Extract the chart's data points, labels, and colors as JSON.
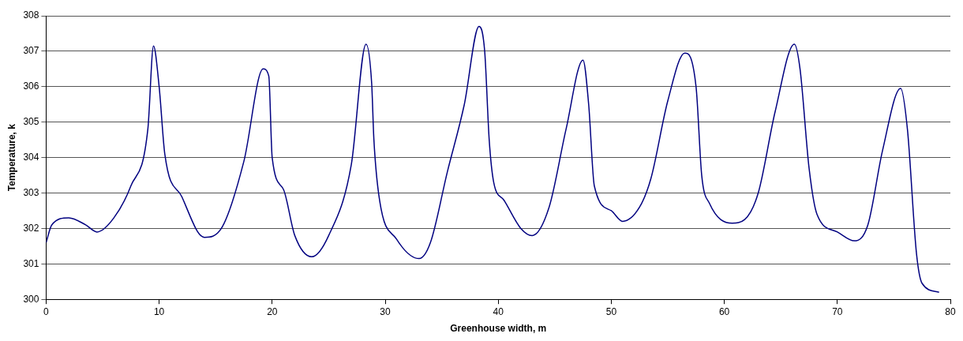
{
  "chart_data": {
    "type": "line",
    "xlabel": "Greenhouse width, m",
    "ylabel": "Temperature, k",
    "x": [
      0,
      0.5,
      2,
      3.5,
      4.5,
      6,
      7.5,
      9,
      9.5,
      10,
      10.5,
      12,
      14,
      15.5,
      17.5,
      19.2,
      19.7,
      20,
      21,
      22,
      23.5,
      25,
      27,
      28.3,
      28.8,
      29,
      29.5,
      31,
      33,
      34,
      35.5,
      37,
      38.3,
      38.8,
      39.2,
      39.6,
      40.5,
      42,
      43,
      44.5,
      46,
      47.5,
      48,
      48.5,
      50,
      51,
      52.5,
      53.5,
      55,
      56.5,
      57.5,
      58,
      58.7,
      60.7,
      61.8,
      63,
      64.5,
      66.2,
      66.7,
      67.5,
      68.2,
      70,
      71.5,
      72.7,
      74,
      75.6,
      76.2,
      77,
      77.5,
      79
    ],
    "series": [
      {
        "color": "#000080",
        "values": [
          301.6,
          302.1,
          302.3,
          302.1,
          301.9,
          302.3,
          303.2,
          304.8,
          307.15,
          306.0,
          304.1,
          302.9,
          301.75,
          302.0,
          303.9,
          306.5,
          306.3,
          304.0,
          303.1,
          301.8,
          301.2,
          301.8,
          303.8,
          307.2,
          306.1,
          304.5,
          302.8,
          301.7,
          301.15,
          301.6,
          303.6,
          305.5,
          307.7,
          307.0,
          304.5,
          303.3,
          302.8,
          302.0,
          301.8,
          302.6,
          304.8,
          306.75,
          305.5,
          303.2,
          302.5,
          302.2,
          302.6,
          303.4,
          305.6,
          306.95,
          306.0,
          303.5,
          302.7,
          302.15,
          302.25,
          303.0,
          305.3,
          307.2,
          306.5,
          303.7,
          302.4,
          301.9,
          301.65,
          302.1,
          304.2,
          305.95,
          304.8,
          301.3,
          300.45,
          300.2
        ]
      }
    ],
    "xlim": [
      0,
      80
    ],
    "xticks": [
      0,
      10,
      20,
      30,
      40,
      50,
      60,
      70,
      80
    ],
    "ylim": [
      300,
      308
    ],
    "yticks": [
      300,
      301,
      302,
      303,
      304,
      305,
      306,
      307,
      308
    ],
    "grid": "y",
    "legend": false,
    "marker": "none",
    "line_style": "solid"
  }
}
